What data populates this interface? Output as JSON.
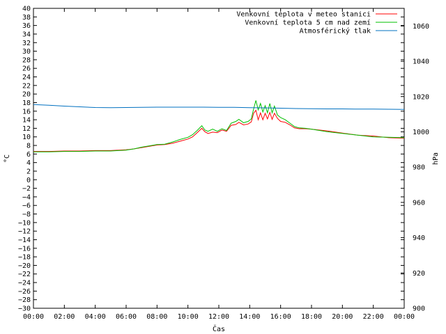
{
  "chart_data": {
    "type": "line",
    "xlabel": "Čas",
    "ylabel": "°C",
    "y2label": "hPa",
    "xlim": [
      0,
      24
    ],
    "ylim": [
      -30,
      40
    ],
    "y2lim": [
      900,
      1070
    ],
    "x_ticks": [
      "00:00",
      "02:00",
      "04:00",
      "06:00",
      "08:00",
      "10:00",
      "12:00",
      "14:00",
      "16:00",
      "18:00",
      "20:00",
      "22:00",
      "00:00"
    ],
    "y_ticks": [
      -30,
      -28,
      -26,
      -24,
      -22,
      -20,
      -18,
      -16,
      -14,
      -12,
      -10,
      -8,
      -6,
      -4,
      -2,
      0,
      2,
      4,
      6,
      8,
      10,
      12,
      14,
      16,
      18,
      20,
      22,
      24,
      26,
      28,
      30,
      32,
      34,
      36,
      38,
      40
    ],
    "y2_ticks": [
      900,
      920,
      940,
      960,
      980,
      1000,
      1020,
      1040,
      1060
    ],
    "legend_position": "top-right",
    "grid": false,
    "series": [
      {
        "name": "Venkovní teplota v meteo stanici",
        "color": "#ff0000",
        "axis": "left",
        "points": [
          [
            0,
            6.6
          ],
          [
            1,
            6.6
          ],
          [
            2,
            6.7
          ],
          [
            3,
            6.7
          ],
          [
            4,
            6.8
          ],
          [
            5,
            6.8
          ],
          [
            6,
            7.0
          ],
          [
            6.5,
            7.2
          ],
          [
            7,
            7.5
          ],
          [
            7.5,
            7.8
          ],
          [
            8,
            8.1
          ],
          [
            8.5,
            8.2
          ],
          [
            9,
            8.5
          ],
          [
            9.5,
            9.0
          ],
          [
            10,
            9.5
          ],
          [
            10.3,
            10.0
          ],
          [
            10.6,
            11.0
          ],
          [
            10.9,
            12.0
          ],
          [
            11.1,
            11.2
          ],
          [
            11.3,
            10.8
          ],
          [
            11.6,
            11.1
          ],
          [
            11.9,
            11.0
          ],
          [
            12.2,
            11.6
          ],
          [
            12.5,
            11.3
          ],
          [
            12.8,
            12.7
          ],
          [
            13.1,
            12.9
          ],
          [
            13.3,
            13.4
          ],
          [
            13.6,
            12.8
          ],
          [
            13.9,
            13.0
          ],
          [
            14.1,
            13.5
          ],
          [
            14.25,
            15.5
          ],
          [
            14.4,
            16.2
          ],
          [
            14.55,
            14.0
          ],
          [
            14.7,
            15.6
          ],
          [
            14.85,
            14.0
          ],
          [
            15.0,
            15.5
          ],
          [
            15.15,
            14.2
          ],
          [
            15.3,
            15.7
          ],
          [
            15.45,
            14.1
          ],
          [
            15.6,
            15.5
          ],
          [
            15.8,
            14.3
          ],
          [
            16.0,
            13.6
          ],
          [
            16.3,
            13.4
          ],
          [
            16.6,
            12.8
          ],
          [
            16.9,
            12.1
          ],
          [
            17.2,
            11.9
          ],
          [
            17.6,
            11.9
          ],
          [
            18,
            11.8
          ],
          [
            19,
            11.4
          ],
          [
            20,
            10.9
          ],
          [
            21,
            10.4
          ],
          [
            22,
            10.2
          ],
          [
            23,
            9.8
          ],
          [
            24,
            9.7
          ]
        ]
      },
      {
        "name": "Venkovní teplota 5 cm nad zemí",
        "color": "#00c000",
        "axis": "left",
        "points": [
          [
            0,
            6.5
          ],
          [
            1,
            6.5
          ],
          [
            2,
            6.6
          ],
          [
            3,
            6.6
          ],
          [
            4,
            6.7
          ],
          [
            5,
            6.7
          ],
          [
            6,
            6.9
          ],
          [
            6.5,
            7.2
          ],
          [
            7,
            7.6
          ],
          [
            7.5,
            7.9
          ],
          [
            8,
            8.2
          ],
          [
            8.5,
            8.3
          ],
          [
            9,
            8.8
          ],
          [
            9.5,
            9.4
          ],
          [
            10,
            9.9
          ],
          [
            10.3,
            10.5
          ],
          [
            10.6,
            11.5
          ],
          [
            10.9,
            12.6
          ],
          [
            11.1,
            11.6
          ],
          [
            11.3,
            11.3
          ],
          [
            11.6,
            11.8
          ],
          [
            11.9,
            11.3
          ],
          [
            12.2,
            11.9
          ],
          [
            12.5,
            11.5
          ],
          [
            12.8,
            13.2
          ],
          [
            13.1,
            13.6
          ],
          [
            13.3,
            14.1
          ],
          [
            13.6,
            13.3
          ],
          [
            13.9,
            13.6
          ],
          [
            14.1,
            14.2
          ],
          [
            14.25,
            16.5
          ],
          [
            14.4,
            18.5
          ],
          [
            14.55,
            16.3
          ],
          [
            14.7,
            17.8
          ],
          [
            14.85,
            15.8
          ],
          [
            15.0,
            17.3
          ],
          [
            15.15,
            15.6
          ],
          [
            15.3,
            17.8
          ],
          [
            15.45,
            15.6
          ],
          [
            15.6,
            17.2
          ],
          [
            15.8,
            15.1
          ],
          [
            16.0,
            14.5
          ],
          [
            16.3,
            14.0
          ],
          [
            16.6,
            13.2
          ],
          [
            16.9,
            12.4
          ],
          [
            17.2,
            12.1
          ],
          [
            17.6,
            12.0
          ],
          [
            18,
            11.8
          ],
          [
            19,
            11.2
          ],
          [
            20,
            10.8
          ],
          [
            21,
            10.4
          ],
          [
            22,
            10.0
          ],
          [
            23,
            9.9
          ],
          [
            24,
            9.8
          ]
        ]
      },
      {
        "name": "Atmosférický tlak",
        "color": "#0070c0",
        "axis": "right",
        "points": [
          [
            0,
            1015.5
          ],
          [
            1,
            1015.1
          ],
          [
            2,
            1014.6
          ],
          [
            3,
            1014.2
          ],
          [
            4,
            1013.8
          ],
          [
            5,
            1013.7
          ],
          [
            6,
            1013.8
          ],
          [
            7,
            1013.9
          ],
          [
            8,
            1014.0
          ],
          [
            9,
            1014.0
          ],
          [
            10,
            1014.0
          ],
          [
            11,
            1014.0
          ],
          [
            12,
            1013.9
          ],
          [
            13,
            1013.9
          ],
          [
            14,
            1013.7
          ],
          [
            15,
            1013.6
          ],
          [
            16,
            1013.4
          ],
          [
            17,
            1013.2
          ],
          [
            18,
            1013.1
          ],
          [
            19,
            1013.0
          ],
          [
            20,
            1013.0
          ],
          [
            21,
            1012.9
          ],
          [
            22,
            1012.9
          ],
          [
            23,
            1012.8
          ],
          [
            24,
            1012.7
          ]
        ]
      }
    ]
  }
}
